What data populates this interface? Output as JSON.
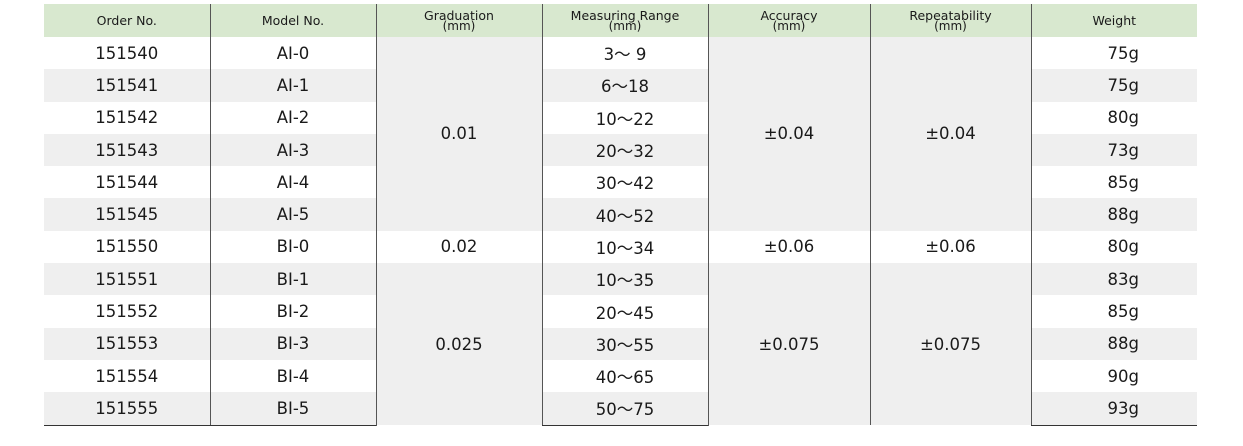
{
  "headers": [
    {
      "label": "Order No.",
      "sub": ""
    },
    {
      "label": "Model No.",
      "sub": ""
    },
    {
      "label": "Graduation",
      "sub": "(mm)"
    },
    {
      "label": "Measuring Range",
      "sub": "(mm)"
    },
    {
      "label": "Accuracy",
      "sub": "(mm)"
    },
    {
      "label": "Repeatability",
      "sub": "(mm)"
    },
    {
      "label": "Weight",
      "sub": ""
    }
  ],
  "rows": [
    {
      "order": "151540",
      "model": "AI-0",
      "range": "3～ 9",
      "weight": "75g"
    },
    {
      "order": "151541",
      "model": "AI-1",
      "range": "6～18",
      "weight": "75g"
    },
    {
      "order": "151542",
      "model": "AI-2",
      "range": "10～22",
      "weight": "80g"
    },
    {
      "order": "151543",
      "model": "AI-3",
      "range": "20～32",
      "weight": "73g"
    },
    {
      "order": "151544",
      "model": "AI-4",
      "range": "30～42",
      "weight": "85g"
    },
    {
      "order": "151545",
      "model": "AI-5",
      "range": "40～52",
      "weight": "88g"
    },
    {
      "order": "151550",
      "model": "BI-0",
      "range": "10～34",
      "weight": "80g"
    },
    {
      "order": "151551",
      "model": "BI-1",
      "range": "10～35",
      "weight": "83g"
    },
    {
      "order": "151552",
      "model": "BI-2",
      "range": "20～45",
      "weight": "85g"
    },
    {
      "order": "151553",
      "model": "BI-3",
      "range": "30～55",
      "weight": "88g"
    },
    {
      "order": "151554",
      "model": "BI-4",
      "range": "40～65",
      "weight": "90g"
    },
    {
      "order": "151555",
      "model": "BI-5",
      "range": "50～75",
      "weight": "93g"
    }
  ],
  "groups": [
    {
      "graduation": "0.01",
      "accuracy": "±0.04",
      "repeatability": "±0.04"
    },
    {
      "graduation": "0.02",
      "accuracy": "±0.06",
      "repeatability": "±0.06"
    },
    {
      "graduation": "0.025",
      "accuracy": "±0.075",
      "repeatability": "±0.075"
    }
  ],
  "colors": {
    "header_bg": "#d8e8cf",
    "stripe": "#efefef"
  }
}
